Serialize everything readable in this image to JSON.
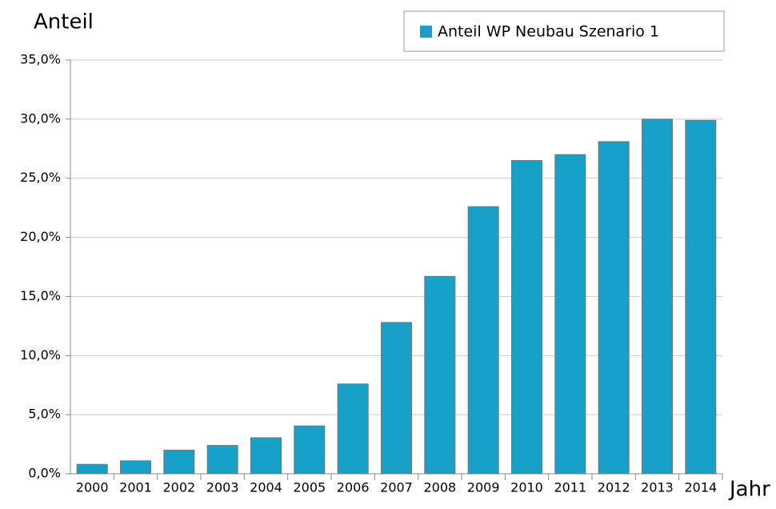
{
  "chart_data": {
    "type": "bar",
    "y_label": "Anteil",
    "x_label": "Jahr",
    "categories": [
      "2000",
      "2001",
      "2002",
      "2003",
      "2004",
      "2005",
      "2006",
      "2007",
      "2008",
      "2009",
      "2010",
      "2011",
      "2012",
      "2013",
      "2014"
    ],
    "series": [
      {
        "name": "Anteil WP Neubau Szenario 1",
        "color": "#17a0c8",
        "values": [
          0.8,
          1.1,
          2.0,
          2.4,
          3.05,
          4.05,
          7.6,
          12.8,
          16.7,
          22.6,
          26.5,
          27.0,
          28.1,
          30.0,
          29.9
        ]
      }
    ],
    "ylim": [
      0,
      35
    ],
    "yticks": [
      {
        "value": 0,
        "label": "0,0%"
      },
      {
        "value": 5,
        "label": "5,0%"
      },
      {
        "value": 10,
        "label": "10,0%"
      },
      {
        "value": 15,
        "label": "15,0%"
      },
      {
        "value": 20,
        "label": "20,0%"
      },
      {
        "value": 25,
        "label": "25,0%"
      },
      {
        "value": 30,
        "label": "30,0%"
      },
      {
        "value": 35,
        "label": "35,0%"
      }
    ],
    "grid": true,
    "legend": "top-right"
  }
}
